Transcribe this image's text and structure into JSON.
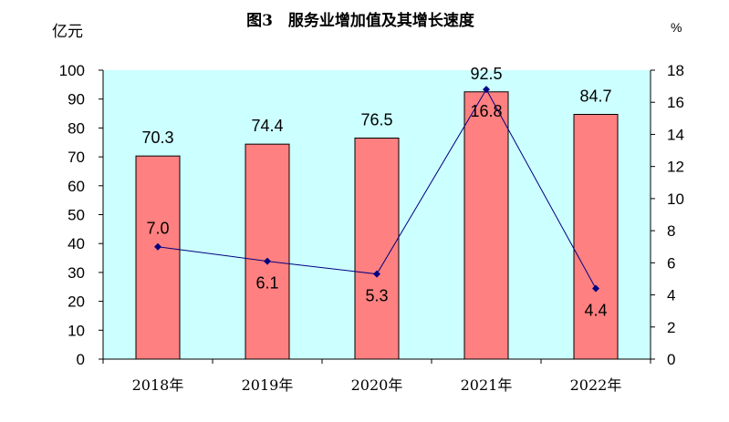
{
  "chart_data": {
    "type": "bar+line",
    "title": "图3　服务业增加值及其增长速度",
    "ylabel_left": "亿元",
    "ylabel_right": "%",
    "categories": [
      "2018年",
      "2019年",
      "2020年",
      "2021年",
      "2022年"
    ],
    "series": [
      {
        "name": "服务业增加值",
        "type": "bar",
        "axis": "left",
        "values": [
          70.3,
          74.4,
          76.5,
          92.5,
          84.7
        ],
        "labels": [
          "70.3",
          "74.4",
          "76.5",
          "92.5",
          "84.7"
        ],
        "color": "#ff8080"
      },
      {
        "name": "增长速度",
        "type": "line",
        "axis": "right",
        "values": [
          7.0,
          6.1,
          5.3,
          16.8,
          4.4
        ],
        "labels": [
          "7.0",
          "6.1",
          "5.3",
          "16.8",
          "4.4"
        ],
        "color": "#000080"
      }
    ],
    "ylim_left": [
      0,
      100
    ],
    "yticks_left": [
      "0",
      "10",
      "20",
      "30",
      "40",
      "50",
      "60",
      "70",
      "80",
      "90",
      "100"
    ],
    "ylim_right": [
      0,
      18
    ],
    "yticks_right": [
      "0",
      "2",
      "4",
      "6",
      "8",
      "10",
      "12",
      "14",
      "16",
      "18"
    ],
    "plot_background": "#ccffff"
  }
}
